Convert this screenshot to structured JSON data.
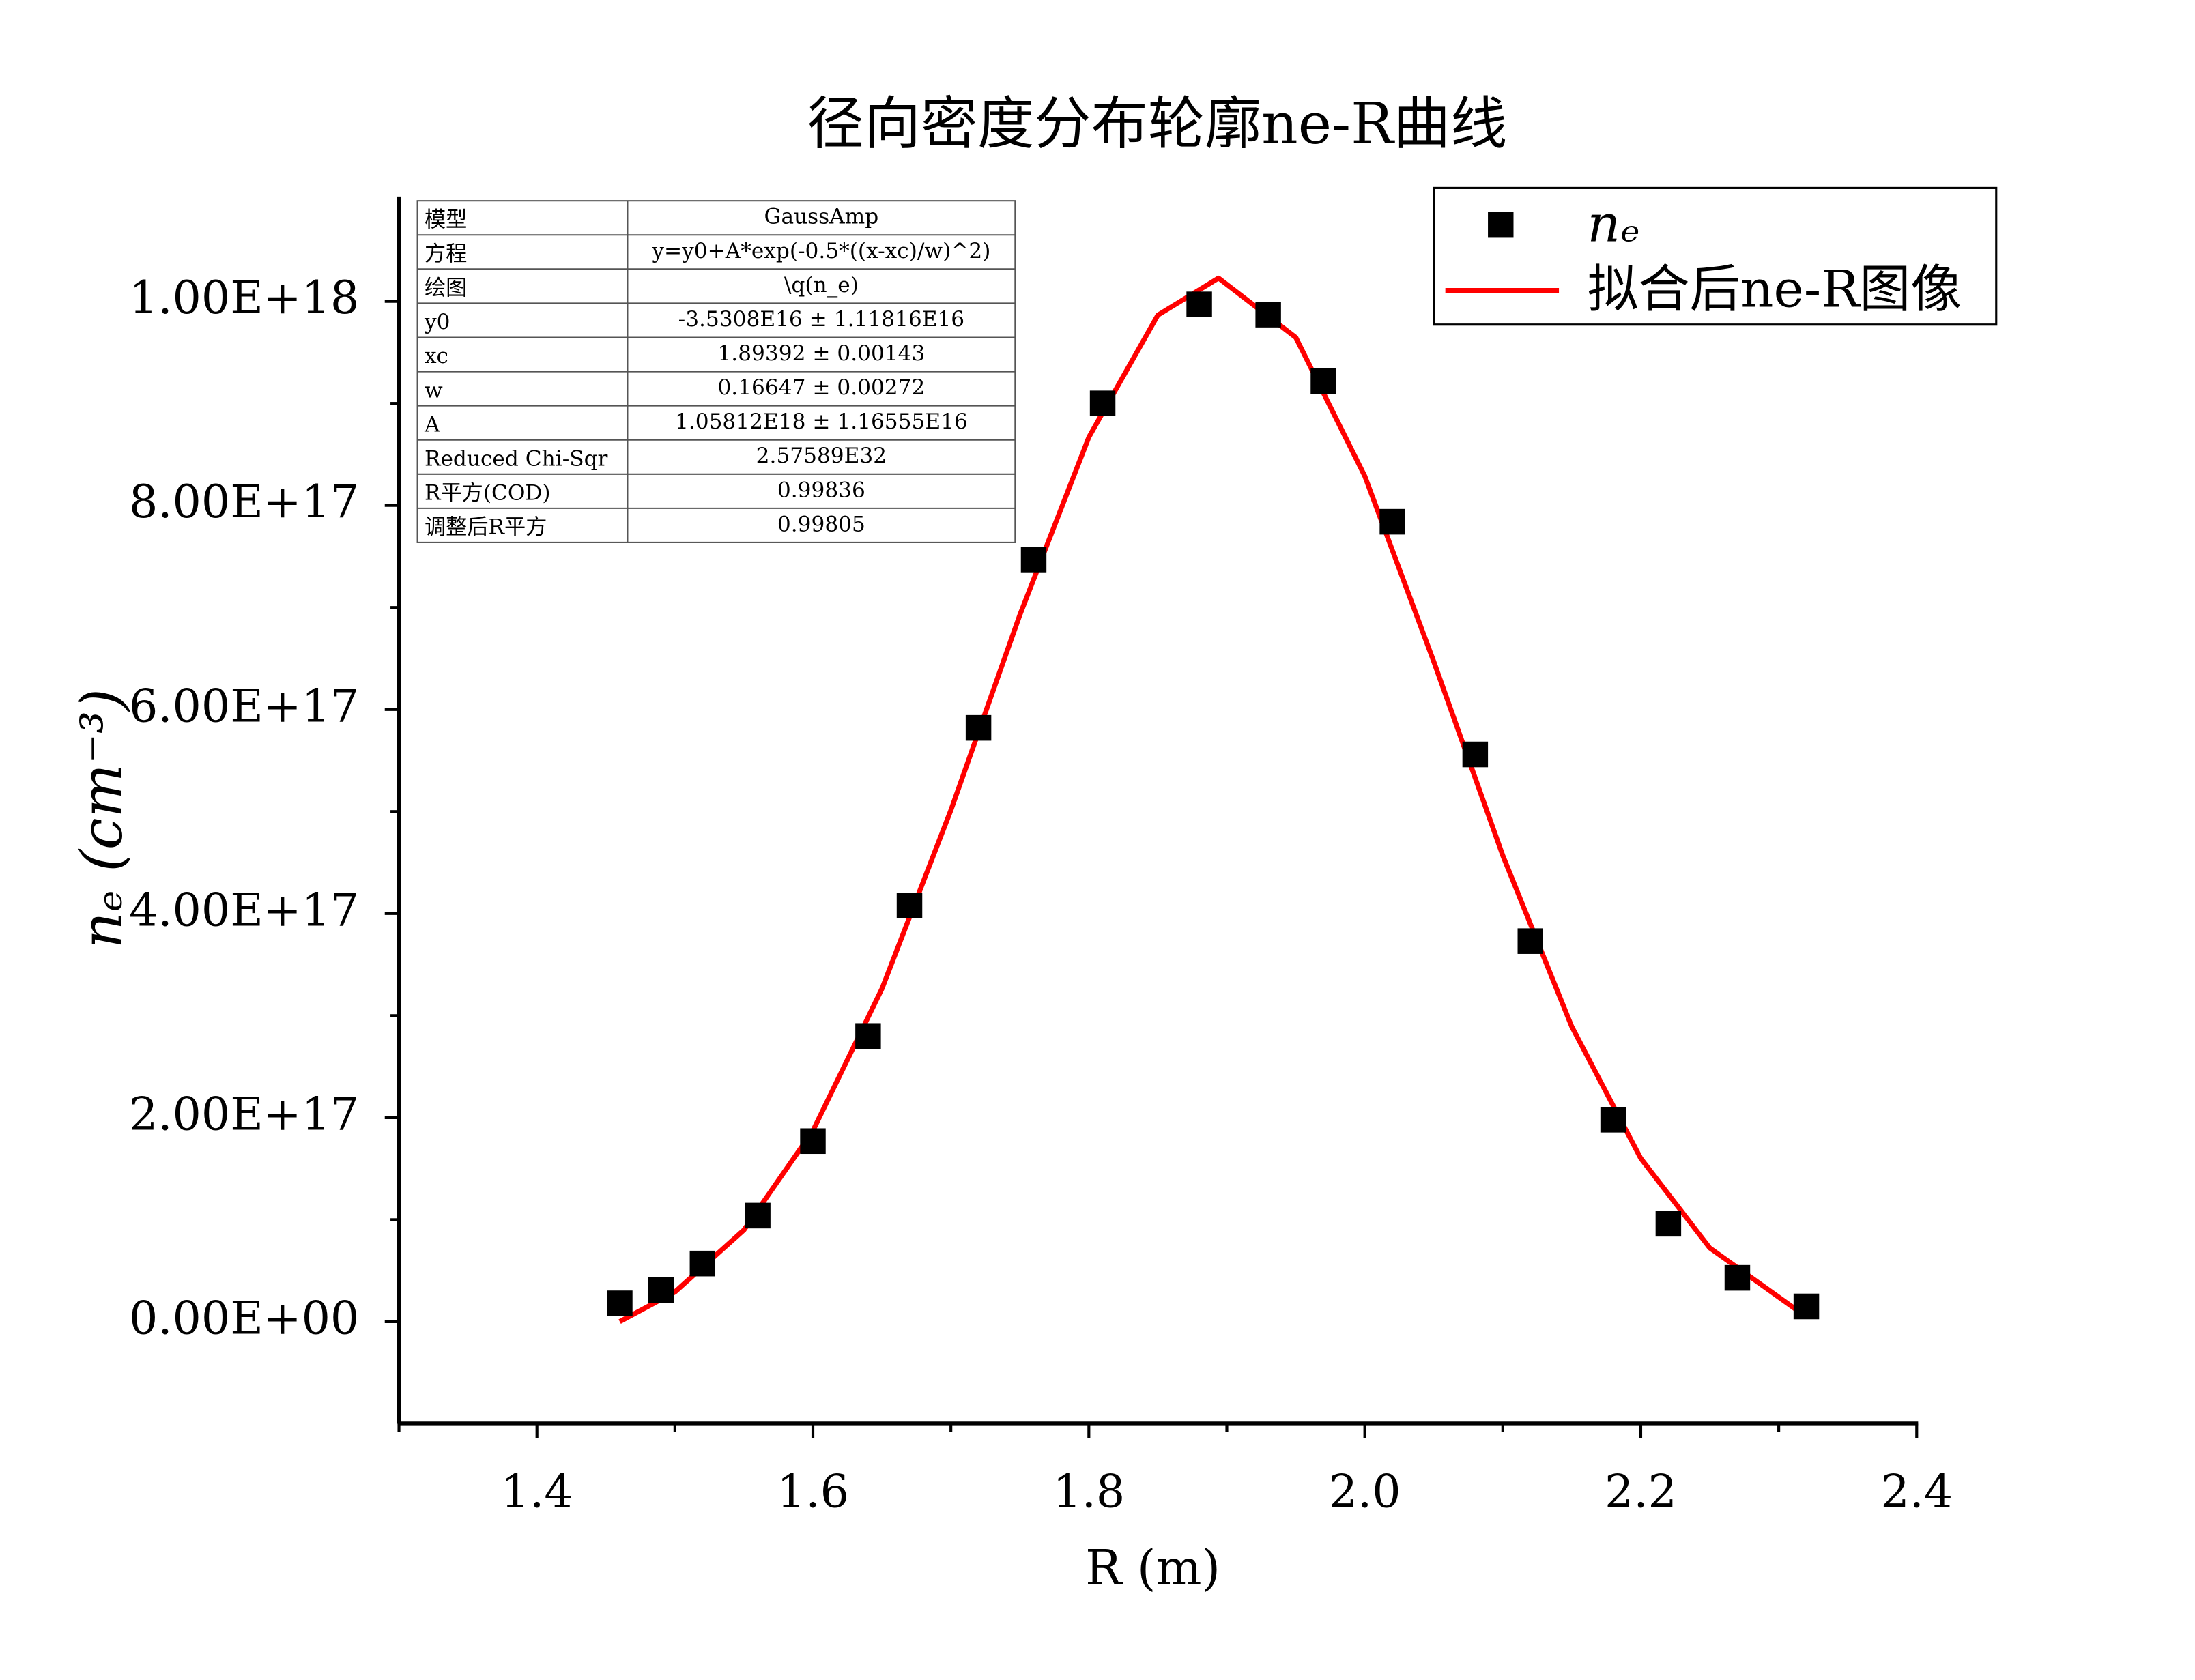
{
  "chart_data": {
    "type": "scatter",
    "title": "径向密度分布轮廓ne-R曲线",
    "x_label": "R (m)",
    "y_label": "nₑ (cm⁻³)",
    "xlim": [
      1.3,
      2.4
    ],
    "ylim": [
      -1e+17,
      1.1e+18
    ],
    "xticks": [
      1.4,
      1.6,
      1.8,
      {
        "value": 2,
        "label": "2.0"
      },
      2.2,
      2.4
    ],
    "xminorticks": [
      1.3,
      1.5,
      1.7,
      1.9,
      2.1,
      2.3
    ],
    "yticks": [
      {
        "value": 0,
        "label": "0.00E+00"
      },
      {
        "value": 2e+17,
        "label": "2.00E+17"
      },
      {
        "value": 4e+17,
        "label": "4.00E+17"
      },
      {
        "value": 6e+17,
        "label": "6.00E+17"
      },
      {
        "value": 8e+17,
        "label": "8.00E+17"
      },
      {
        "value": 1e+18,
        "label": "1.00E+18"
      }
    ],
    "yminorticks": [
      1e+17,
      3e+17,
      5e+17,
      7e+17,
      9e+17
    ],
    "legend_position": "upper right",
    "series": [
      {
        "name": "nₑ",
        "type": "scatter",
        "marker": "square",
        "color": "#000000",
        "x": [
          1.46,
          1.49,
          1.52,
          1.56,
          1.6,
          1.64,
          1.67,
          1.72,
          1.76,
          1.81,
          1.88,
          1.93,
          1.97,
          2.02,
          2.08,
          2.12,
          2.18,
          2.22,
          2.27,
          2.32
        ],
        "values": [
          1.8e+16,
          3.1e+16,
          5.7e+16,
          1.04e+17,
          1.77e+17,
          2.8e+17,
          4.08e+17,
          5.82e+17,
          7.47e+17,
          9e+17,
          9.97e+17,
          9.87e+17,
          9.22e+17,
          7.84e+17,
          5.56e+17,
          3.73e+17,
          1.98e+17,
          9.6e+16,
          4.3e+16,
          1.5e+16
        ]
      },
      {
        "name": "拟合后ne-R图像",
        "type": "line",
        "color": "#ff0000",
        "x": [
          1.46,
          1.5,
          1.55,
          1.6,
          1.65,
          1.7,
          1.75,
          1.8,
          1.85,
          1.894,
          1.95,
          2.0,
          2.05,
          2.1,
          2.15,
          2.2,
          2.25,
          2.32
        ],
        "values": [
          100000000000000.0,
          2.91e+16,
          8.99e+16,
          1.872e+17,
          3.262e+17,
          5.013e+17,
          6.927e+17,
          8.669e+17,
          9.865e+17,
          1.0228e+18,
          9.646e+17,
          8.287e+17,
          6.469e+17,
          4.569e+17,
          2.892e+17,
          1.601e+17,
          7.23e+16,
          4800000000000000.0
        ]
      }
    ]
  },
  "fit_table": {
    "rows": [
      [
        "模型",
        "GaussAmp"
      ],
      [
        "方程",
        "y=y0+A*exp(-0.5*((x-xc)/w)^2)"
      ],
      [
        "绘图",
        "\\q(n_e)"
      ],
      [
        "y0",
        "-3.5308E16 ± 1.11816E16"
      ],
      [
        "xc",
        "1.89392 ± 0.00143"
      ],
      [
        "w",
        "0.16647 ± 0.00272"
      ],
      [
        "A",
        "1.05812E18 ± 1.16555E16"
      ],
      [
        "Reduced Chi-Sqr",
        "2.57589E32"
      ],
      [
        "R平方(COD)",
        "0.99836"
      ],
      [
        "调整后R平方",
        "0.99805"
      ]
    ]
  }
}
